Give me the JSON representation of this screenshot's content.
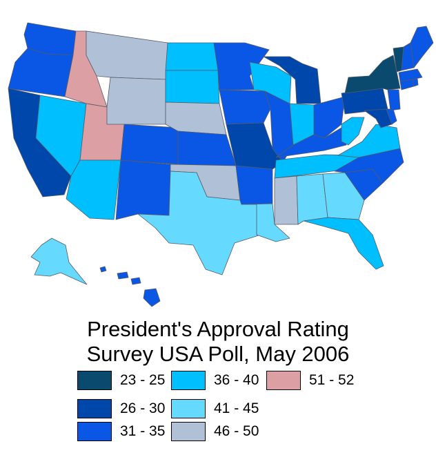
{
  "title_line1": "President's Approval Rating",
  "title_line2": "Survey USA Poll, May 2006",
  "colors": {
    "23-25": "#0a4a6e",
    "26-30": "#0047ab",
    "31-35": "#0a57e6",
    "36-40": "#00bfff",
    "41-45": "#66d9ff",
    "46-50": "#b0c0d6",
    "51-52": "#dc9fa3"
  },
  "legend": [
    {
      "label": "23 - 25",
      "key": "23-25"
    },
    {
      "label": "26 - 30",
      "key": "26-30"
    },
    {
      "label": "31 - 35",
      "key": "31-35"
    },
    {
      "label": "36 - 40",
      "key": "36-40"
    },
    {
      "label": "41 - 45",
      "key": "41-45"
    },
    {
      "label": "46 - 50",
      "key": "46-50"
    },
    {
      "label": "51 - 52",
      "key": "51-52"
    }
  ],
  "state_ranges": {
    "WA": "31-35",
    "OR": "31-35",
    "CA": "26-30",
    "NV": "36-40",
    "ID": "51-52",
    "UT": "51-52",
    "AZ": "36-40",
    "MT": "46-50",
    "WY": "46-50",
    "CO": "31-35",
    "NM": "31-35",
    "ND": "36-40",
    "SD": "36-40",
    "NE": "46-50",
    "KS": "31-35",
    "OK": "46-50",
    "TX": "41-45",
    "MN": "31-35",
    "IA": "31-35",
    "MO": "26-30",
    "AR": "31-35",
    "LA": "41-45",
    "WI": "36-40",
    "IL": "31-35",
    "MI": "26-30",
    "IN": "36-40",
    "OH": "31-35",
    "KY": "31-35",
    "TN": "36-40",
    "MS": "46-50",
    "AL": "41-45",
    "GA": "41-45",
    "FL": "36-40",
    "SC": "31-35",
    "NC": "31-35",
    "VA": "36-40",
    "WV": "36-40",
    "MD": "26-30",
    "DE": "31-35",
    "PA": "26-30",
    "NJ": "31-35",
    "NY": "23-25",
    "CT": "31-35",
    "RI": "31-35",
    "MA": "31-35",
    "VT": "23-25",
    "NH": "31-35",
    "ME": "31-35",
    "AK": "41-45",
    "HI": "31-35"
  }
}
